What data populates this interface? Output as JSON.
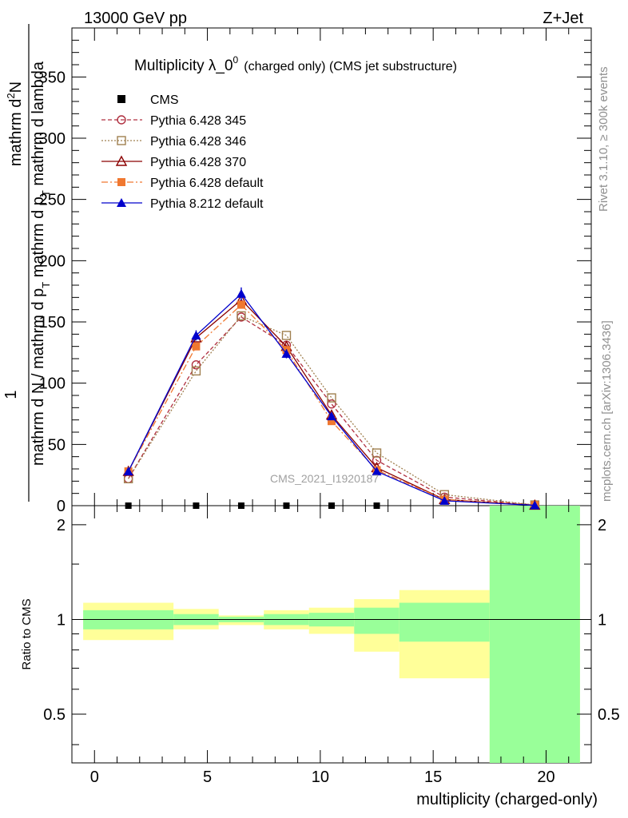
{
  "header": {
    "left": "13000 GeV pp",
    "right": "Z+Jet"
  },
  "side_labels": {
    "rivet": "Rivet 3.1.10, ≥ 300k events",
    "mcplots": "mcplots.cern.ch [arXiv:1306.3436]"
  },
  "chart_data": [
    {
      "panel": "main",
      "type": "line",
      "title_main": "Multiplicity λ_0",
      "title_sup": "0",
      "title_tail": "(charged only) (CMS jet substructure)",
      "watermark": "CMS_2021_I1920187",
      "ylabel_top": "1",
      "ylabel_numerator": "mathrm d",
      "ylabel_numerator_sup": "2",
      "ylabel_numerator_tail": "N",
      "ylabel_denominator": "mathrm d N / mathrm d p",
      "ylabel_denominator_sub": "T",
      "ylabel_denominator_tail": " mathrm d p",
      "ylabel_denominator_sub2": "T",
      "ylabel_denominator_tail2": " mathrm d lambda",
      "xlim": [
        -1,
        22
      ],
      "ylim": [
        0,
        390
      ],
      "yticks": [
        50,
        100,
        150,
        200,
        250,
        300,
        350
      ],
      "ytick_labels": [
        "50",
        "100",
        "150",
        "200",
        "250",
        "300",
        "350"
      ],
      "y0_label": "0",
      "series": [
        {
          "name": "CMS",
          "color": "#000000",
          "marker": "square-filled",
          "dash": "none",
          "x": [
            1.5,
            4.5,
            6.5,
            8.5,
            10.5,
            12.5
          ],
          "y": [
            0,
            0,
            0,
            0,
            0,
            0
          ]
        },
        {
          "name": "Pythia 6.428 345",
          "color": "#b03040",
          "marker": "circle-open",
          "dash": "5,3",
          "x": [
            1.5,
            4.5,
            6.5,
            8.5,
            10.5,
            12.5,
            15.5,
            19.5
          ],
          "y": [
            22,
            115,
            154,
            131,
            83,
            37,
            7,
            0.5
          ]
        },
        {
          "name": "Pythia 6.428 346",
          "color": "#a08050",
          "marker": "square-open",
          "dash": "2,2",
          "x": [
            1.5,
            4.5,
            6.5,
            8.5,
            10.5,
            12.5,
            15.5,
            19.5
          ],
          "y": [
            22,
            110,
            155,
            139,
            88,
            43,
            9,
            0.6
          ]
        },
        {
          "name": "Pythia 6.428 370",
          "color": "#8b0000",
          "marker": "triangle-open",
          "dash": "none",
          "x": [
            1.5,
            4.5,
            6.5,
            8.5,
            10.5,
            12.5,
            15.5,
            19.5
          ],
          "y": [
            28,
            137,
            168,
            130,
            74,
            31,
            5,
            0.4
          ]
        },
        {
          "name": "Pythia 6.428 default",
          "color": "#f07830",
          "marker": "square-filled",
          "dash": "8,3,2,3",
          "x": [
            1.5,
            4.5,
            6.5,
            8.5,
            10.5,
            12.5,
            15.5,
            19.5
          ],
          "y": [
            28,
            130,
            164,
            127,
            69,
            29,
            5,
            0.4
          ]
        },
        {
          "name": "Pythia 8.212 default",
          "color": "#0000cc",
          "marker": "triangle-filled",
          "dash": "none",
          "x": [
            1.5,
            4.5,
            6.5,
            8.5,
            10.5,
            12.5,
            15.5,
            19.5
          ],
          "y": [
            28,
            139,
            173,
            124,
            73,
            28,
            4,
            0.3
          ]
        }
      ]
    },
    {
      "panel": "ratio",
      "type": "area",
      "ylabel": "Ratio to CMS",
      "xlabel": "multiplicity (charged-only)",
      "xlim": [
        -1,
        22
      ],
      "ylim": [
        0.35,
        2.3
      ],
      "yticks": [
        0.5,
        1,
        2
      ],
      "ytick_labels": [
        "0.5",
        "1",
        "2"
      ],
      "xticks": [
        0,
        5,
        10,
        15,
        20
      ],
      "xtick_labels": [
        "0",
        "5",
        "10",
        "15",
        "20"
      ],
      "reference_line": 1,
      "bins": [
        {
          "lo": -0.5,
          "hi": 3.5,
          "inner": [
            0.93,
            1.07
          ],
          "outer": [
            0.86,
            1.13
          ]
        },
        {
          "lo": 3.5,
          "hi": 5.5,
          "inner": [
            0.96,
            1.04
          ],
          "outer": [
            0.93,
            1.08
          ]
        },
        {
          "lo": 5.5,
          "hi": 7.5,
          "inner": [
            0.98,
            1.02
          ],
          "outer": [
            0.96,
            1.03
          ]
        },
        {
          "lo": 7.5,
          "hi": 9.5,
          "inner": [
            0.96,
            1.04
          ],
          "outer": [
            0.93,
            1.07
          ]
        },
        {
          "lo": 9.5,
          "hi": 11.5,
          "inner": [
            0.95,
            1.05
          ],
          "outer": [
            0.9,
            1.09
          ]
        },
        {
          "lo": 11.5,
          "hi": 13.5,
          "inner": [
            0.9,
            1.09
          ],
          "outer": [
            0.79,
            1.16
          ]
        },
        {
          "lo": 13.5,
          "hi": 17.5,
          "inner": [
            0.85,
            1.13
          ],
          "outer": [
            0.65,
            1.24
          ]
        },
        {
          "lo": 17.5,
          "hi": 21.5,
          "inner": [
            0.35,
            2.3
          ],
          "outer": [
            0.35,
            2.3
          ]
        }
      ],
      "colors": {
        "inner": "#99ff99",
        "outer": "#ffff99"
      }
    }
  ]
}
